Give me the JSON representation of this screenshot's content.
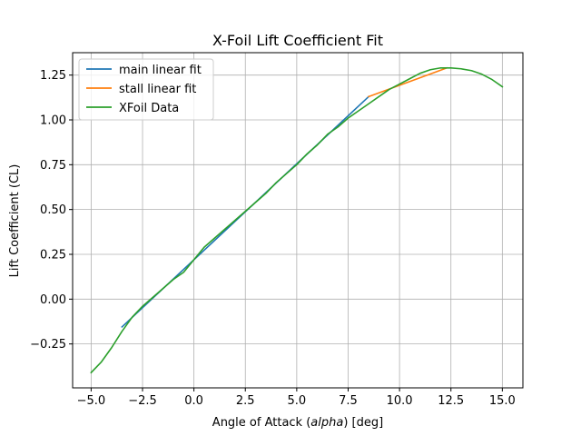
{
  "chart_data": {
    "type": "line",
    "title": "X-Foil Lift Coefficient Fit",
    "xlabel_prefix": "Angle of Attack (",
    "xlabel_italic": "alpha",
    "xlabel_suffix": ") [deg]",
    "ylabel": "Lift Coefficient (CL)",
    "xlim": [
      -5.9,
      16.0
    ],
    "ylim": [
      -0.495,
      1.375
    ],
    "xticks": [
      -5.0,
      -2.5,
      0.0,
      2.5,
      5.0,
      7.5,
      10.0,
      12.5,
      15.0
    ],
    "xtick_labels": [
      "−5.0",
      "−2.5",
      "0.0",
      "2.5",
      "5.0",
      "7.5",
      "10.0",
      "12.5",
      "15.0"
    ],
    "yticks": [
      -0.25,
      0.0,
      0.25,
      0.5,
      0.75,
      1.0,
      1.25
    ],
    "ytick_labels": [
      "−0.25",
      "0.00",
      "0.25",
      "0.50",
      "0.75",
      "1.00",
      "1.25"
    ],
    "grid": true,
    "legend_position": "top-left",
    "series": [
      {
        "name": "main linear fit",
        "color": "#1f77b4",
        "x": [
          -3.5,
          8.5
        ],
        "y": [
          -0.155,
          1.13
        ]
      },
      {
        "name": "stall linear fit",
        "color": "#ff7f0e",
        "x": [
          8.5,
          12.3
        ],
        "y": [
          1.13,
          1.29
        ]
      },
      {
        "name": "XFoil Data",
        "color": "#2ca02c",
        "x": [
          -5.0,
          -4.5,
          -4.0,
          -3.5,
          -3.0,
          -2.5,
          -2.0,
          -1.5,
          -1.0,
          -0.5,
          0.0,
          0.5,
          1.0,
          1.5,
          2.0,
          2.5,
          3.0,
          3.5,
          4.0,
          4.5,
          5.0,
          5.5,
          6.0,
          6.5,
          7.0,
          7.5,
          8.0,
          8.5,
          9.0,
          9.5,
          10.0,
          10.5,
          11.0,
          11.5,
          12.0,
          12.5,
          13.0,
          13.5,
          14.0,
          14.5,
          15.0
        ],
        "y": [
          -0.41,
          -0.35,
          -0.27,
          -0.18,
          -0.1,
          -0.04,
          0.01,
          0.06,
          0.11,
          0.15,
          0.22,
          0.29,
          0.34,
          0.39,
          0.44,
          0.49,
          0.54,
          0.59,
          0.65,
          0.7,
          0.75,
          0.81,
          0.86,
          0.92,
          0.96,
          1.01,
          1.05,
          1.09,
          1.13,
          1.17,
          1.2,
          1.23,
          1.26,
          1.28,
          1.29,
          1.29,
          1.285,
          1.275,
          1.255,
          1.225,
          1.185
        ]
      }
    ]
  }
}
